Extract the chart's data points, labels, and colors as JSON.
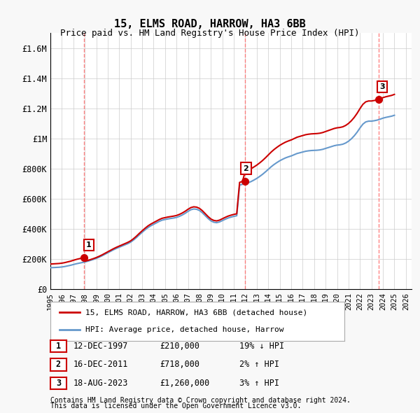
{
  "title": "15, ELMS ROAD, HARROW, HA3 6BB",
  "subtitle": "Price paid vs. HM Land Registry's House Price Index (HPI)",
  "ylabel": "",
  "xlim": [
    1995.0,
    2026.5
  ],
  "ylim": [
    0,
    1700000
  ],
  "yticks": [
    0,
    200000,
    400000,
    600000,
    800000,
    1000000,
    1200000,
    1400000,
    1600000
  ],
  "ytick_labels": [
    "£0",
    "£200K",
    "£400K",
    "£600K",
    "£800K",
    "£1M",
    "£1.2M",
    "£1.4M",
    "£1.6M"
  ],
  "xtick_labels": [
    "1995",
    "1996",
    "1997",
    "1998",
    "1999",
    "2000",
    "2001",
    "2002",
    "2003",
    "2004",
    "2005",
    "2006",
    "2007",
    "2008",
    "2009",
    "2010",
    "2011",
    "2012",
    "2013",
    "2014",
    "2015",
    "2016",
    "2017",
    "2018",
    "2019",
    "2020",
    "2021",
    "2022",
    "2023",
    "2024",
    "2025",
    "2026"
  ],
  "sale_dates": [
    1997.95,
    2011.95,
    2023.62
  ],
  "sale_prices": [
    210000,
    718000,
    1260000
  ],
  "sale_labels": [
    "1",
    "2",
    "3"
  ],
  "hpi_years": [
    1995.0,
    1995.25,
    1995.5,
    1995.75,
    1996.0,
    1996.25,
    1996.5,
    1996.75,
    1997.0,
    1997.25,
    1997.5,
    1997.75,
    1998.0,
    1998.25,
    1998.5,
    1998.75,
    1999.0,
    1999.25,
    1999.5,
    1999.75,
    2000.0,
    2000.25,
    2000.5,
    2000.75,
    2001.0,
    2001.25,
    2001.5,
    2001.75,
    2002.0,
    2002.25,
    2002.5,
    2002.75,
    2003.0,
    2003.25,
    2003.5,
    2003.75,
    2004.0,
    2004.25,
    2004.5,
    2004.75,
    2005.0,
    2005.25,
    2005.5,
    2005.75,
    2006.0,
    2006.25,
    2006.5,
    2006.75,
    2007.0,
    2007.25,
    2007.5,
    2007.75,
    2008.0,
    2008.25,
    2008.5,
    2008.75,
    2009.0,
    2009.25,
    2009.5,
    2009.75,
    2010.0,
    2010.25,
    2010.5,
    2010.75,
    2011.0,
    2011.25,
    2011.5,
    2011.75,
    2012.0,
    2012.25,
    2012.5,
    2012.75,
    2013.0,
    2013.25,
    2013.5,
    2013.75,
    2014.0,
    2014.25,
    2014.5,
    2014.75,
    2015.0,
    2015.25,
    2015.5,
    2015.75,
    2016.0,
    2016.25,
    2016.5,
    2016.75,
    2017.0,
    2017.25,
    2017.5,
    2017.75,
    2018.0,
    2018.25,
    2018.5,
    2018.75,
    2019.0,
    2019.25,
    2019.5,
    2019.75,
    2020.0,
    2020.25,
    2020.5,
    2020.75,
    2021.0,
    2021.25,
    2021.5,
    2021.75,
    2022.0,
    2022.25,
    2022.5,
    2022.75,
    2023.0,
    2023.25,
    2023.5,
    2023.75,
    2024.0,
    2024.25,
    2024.5,
    2024.75,
    2025.0
  ],
  "hpi_values": [
    142000,
    143000,
    144000,
    145000,
    147000,
    150000,
    154000,
    158000,
    163000,
    168000,
    172000,
    176000,
    180000,
    185000,
    191000,
    197000,
    204000,
    212000,
    221000,
    231000,
    241000,
    251000,
    261000,
    270000,
    278000,
    286000,
    294000,
    302000,
    312000,
    326000,
    342000,
    360000,
    377000,
    393000,
    408000,
    420000,
    430000,
    440000,
    450000,
    458000,
    462000,
    466000,
    469000,
    472000,
    476000,
    483000,
    492000,
    503000,
    516000,
    527000,
    532000,
    530000,
    522000,
    507000,
    488000,
    469000,
    453000,
    444000,
    441000,
    446000,
    455000,
    464000,
    472000,
    478000,
    483000,
    487000,
    690000,
    696000,
    700000,
    706000,
    714000,
    724000,
    735000,
    748000,
    762000,
    778000,
    795000,
    812000,
    827000,
    840000,
    852000,
    862000,
    871000,
    878000,
    884000,
    892000,
    900000,
    905000,
    910000,
    915000,
    918000,
    920000,
    921000,
    922000,
    924000,
    928000,
    934000,
    940000,
    946000,
    952000,
    956000,
    958000,
    962000,
    970000,
    982000,
    998000,
    1018000,
    1042000,
    1070000,
    1095000,
    1110000,
    1115000,
    1115000,
    1118000,
    1122000,
    1128000,
    1135000,
    1140000,
    1144000,
    1148000,
    1154000
  ],
  "red_line_color": "#cc0000",
  "blue_line_color": "#6699cc",
  "dashed_color": "#ff6666",
  "legend_box_color": "#ffffff",
  "legend_border_color": "#aaaaaa",
  "table_rows": [
    {
      "num": "1",
      "date": "12-DEC-1997",
      "price": "£210,000",
      "hpi": "19% ↓ HPI"
    },
    {
      "num": "2",
      "date": "16-DEC-2011",
      "price": "£718,000",
      "hpi": "2% ↑ HPI"
    },
    {
      "num": "3",
      "date": "18-AUG-2023",
      "price": "£1,260,000",
      "hpi": "3% ↑ HPI"
    }
  ],
  "footer_line1": "Contains HM Land Registry data © Crown copyright and database right 2024.",
  "footer_line2": "This data is licensed under the Open Government Licence v3.0.",
  "bg_color": "#f8f8f8",
  "plot_bg_color": "#ffffff",
  "grid_color": "#cccccc"
}
